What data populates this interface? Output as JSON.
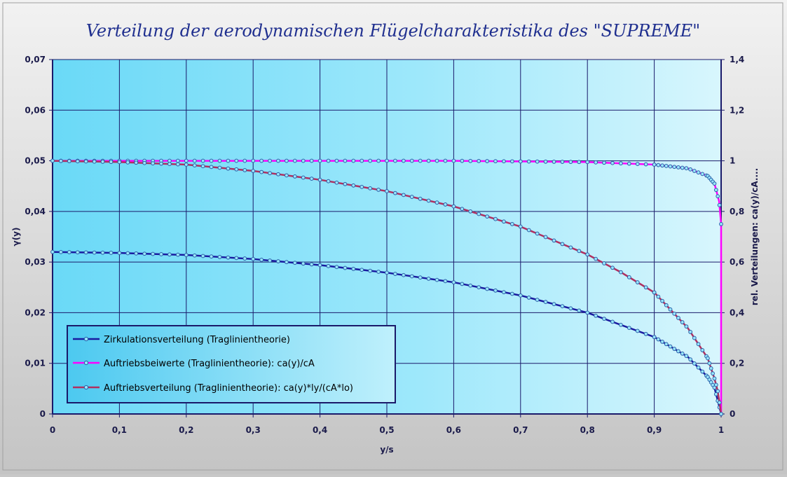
{
  "chart_data": {
    "type": "line",
    "title": "Verteilung der aerodynamischen Flügelcharakteristika des \"SUPREME\"",
    "xlabel": "y/s",
    "ylabel": "γ(y)",
    "y2label": "rel. Verteilungen: ca(y)/cA....",
    "xlim": [
      0,
      1
    ],
    "ylim": [
      0,
      0.07
    ],
    "y2lim": [
      0,
      1.4
    ],
    "x_ticks": [
      "0",
      "0,1",
      "0,2",
      "0,3",
      "0,4",
      "0,5",
      "0,6",
      "0,7",
      "0,8",
      "0,9",
      "1"
    ],
    "y_ticks": [
      "0",
      "0,01",
      "0,02",
      "0,03",
      "0,04",
      "0,05",
      "0,06",
      "0,07"
    ],
    "y2_ticks": [
      "0",
      "0,2",
      "0,4",
      "0,6",
      "0,8",
      "1",
      "1,2",
      "1,4"
    ],
    "grid": true,
    "legend_position": "lower-left",
    "series": [
      {
        "name": "Zirkulationsverteilung (Traglinientheorie)",
        "axis": "left",
        "color": "#1a1aa0",
        "points": [
          [
            0,
            0.032
          ],
          [
            0.1,
            0.0318
          ],
          [
            0.2,
            0.0314
          ],
          [
            0.3,
            0.0306
          ],
          [
            0.4,
            0.0294
          ],
          [
            0.5,
            0.0279
          ],
          [
            0.6,
            0.026
          ],
          [
            0.7,
            0.0234
          ],
          [
            0.8,
            0.02
          ],
          [
            0.9,
            0.0152
          ],
          [
            0.95,
            0.0113
          ],
          [
            0.98,
            0.0073
          ],
          [
            0.99,
            0.0052
          ],
          [
            1.0,
            0.0
          ]
        ]
      },
      {
        "name": "Auftriebsbeiwerte (Traglinientheorie): ca(y)/cA",
        "axis": "right",
        "color": "#ff00ff",
        "points": [
          [
            0,
            1.0
          ],
          [
            0.2,
            1.0
          ],
          [
            0.4,
            1.0
          ],
          [
            0.6,
            1.0
          ],
          [
            0.8,
            0.995
          ],
          [
            0.9,
            0.985
          ],
          [
            0.95,
            0.97
          ],
          [
            0.98,
            0.94
          ],
          [
            0.99,
            0.91
          ],
          [
            0.997,
            0.84
          ],
          [
            1.0,
            0.75
          ],
          [
            1.0,
            0.5
          ],
          [
            1.0,
            0.0
          ]
        ]
      },
      {
        "name": "Auftriebsverteilung (Traglinientheorie): ca(y)*ly/(cA*lo)",
        "axis": "right",
        "color": "#b03060",
        "points": [
          [
            0,
            1.0
          ],
          [
            0.1,
            0.995
          ],
          [
            0.2,
            0.985
          ],
          [
            0.3,
            0.96
          ],
          [
            0.4,
            0.925
          ],
          [
            0.5,
            0.88
          ],
          [
            0.6,
            0.82
          ],
          [
            0.7,
            0.74
          ],
          [
            0.8,
            0.63
          ],
          [
            0.85,
            0.56
          ],
          [
            0.9,
            0.48
          ],
          [
            0.95,
            0.34
          ],
          [
            0.98,
            0.22
          ],
          [
            0.99,
            0.14
          ],
          [
            0.995,
            0.09
          ],
          [
            1.0,
            0.0
          ]
        ]
      }
    ]
  }
}
